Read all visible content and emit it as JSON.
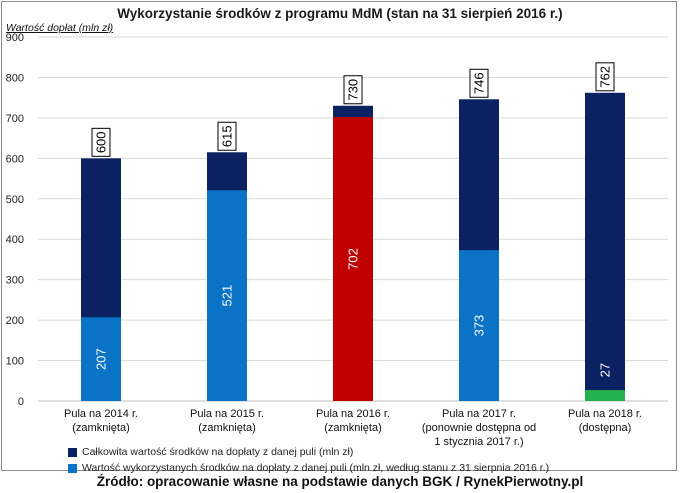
{
  "title": "Wykorzystanie środków z programu MdM (stan na 31 sierpień 2016 r.)",
  "source": "Źródło: opracowanie własne na podstawie danych BGK / RynekPierwotny.pl",
  "colors": {
    "total": "#0b2162",
    "used": "#0b73c6",
    "red": "#c00000",
    "green": "#22b14c",
    "grid": "#d9d9d9"
  },
  "chart_data": {
    "type": "bar",
    "ylabel": "Wartość dopłat (mln zł)",
    "xlabel": "",
    "ylim": [
      0,
      900
    ],
    "yticks": [
      0,
      100,
      200,
      300,
      400,
      500,
      600,
      700,
      800,
      900
    ],
    "grid": true,
    "legend_position": "bottom",
    "categories": [
      [
        "Pula na 2014 r.",
        "(zamknięta)"
      ],
      [
        "Pula na 2015 r.",
        "(zamknięta)"
      ],
      [
        "Pula na 2016 r.",
        "(zamknięta)"
      ],
      [
        "Pula na 2017 r.",
        "(ponownie dostępna od",
        "1 stycznia 2017 r.)"
      ],
      [
        "Pula na 2018 r.",
        "(dostępna)"
      ]
    ],
    "series": [
      {
        "name": "Całkowita wartość środków na dopłaty z danej puli (mln zł)",
        "values": [
          600,
          615,
          730,
          746,
          762
        ]
      },
      {
        "name": "Wartość wykorzystanych środków na dopłaty z danej puli (mln zł, według stanu z 31 sierpnia 2016 r.)",
        "values": [
          207,
          521,
          702,
          373,
          27
        ]
      }
    ],
    "used_bar_colors": [
      "#0b73c6",
      "#0b73c6",
      "#c00000",
      "#0b73c6",
      "#22b14c"
    ]
  }
}
